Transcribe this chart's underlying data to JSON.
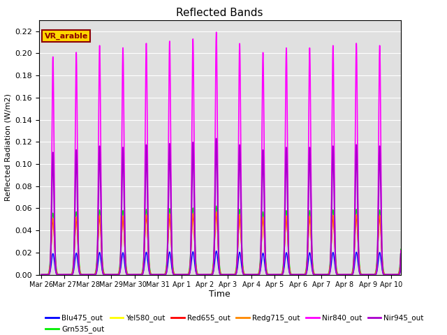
{
  "title": "Reflected Bands",
  "xlabel": "Time",
  "ylabel": "Reflected Radiation (W/m2)",
  "annotation_text": "VR_arable",
  "annotation_color": "#8B0000",
  "annotation_bg": "#FFD700",
  "ylim": [
    0.0,
    0.23
  ],
  "yticks": [
    0.0,
    0.02,
    0.04,
    0.06,
    0.08,
    0.1,
    0.12,
    0.14,
    0.16,
    0.18,
    0.2,
    0.22
  ],
  "bg_color": "#E0E0E0",
  "series_order": [
    "Blu475_out",
    "Grn535_out",
    "Yel580_out",
    "Red655_out",
    "Redg715_out",
    "Nir840_out",
    "Nir945_out"
  ],
  "series": {
    "Blu475_out": {
      "color": "#0000FF",
      "peak": 0.02,
      "sigma": 0.06,
      "lw": 1.0
    },
    "Grn535_out": {
      "color": "#00EE00",
      "peak": 0.058,
      "sigma": 0.07,
      "lw": 1.0
    },
    "Yel580_out": {
      "color": "#FFFF00",
      "peak": 0.053,
      "sigma": 0.065,
      "lw": 1.0
    },
    "Red655_out": {
      "color": "#FF0000",
      "peak": 0.051,
      "sigma": 0.065,
      "lw": 1.0
    },
    "Redg715_out": {
      "color": "#FF8800",
      "peak": 0.053,
      "sigma": 0.065,
      "lw": 1.0
    },
    "Nir840_out": {
      "color": "#FF00FF",
      "peak": 0.205,
      "sigma": 0.045,
      "lw": 1.2
    },
    "Nir945_out": {
      "color": "#AA00CC",
      "peak": 0.115,
      "sigma": 0.05,
      "lw": 1.5
    }
  },
  "xtick_labels": [
    "Mar 26",
    "Mar 27",
    "Mar 28",
    "Mar 29",
    "Mar 30",
    "Mar 31",
    "Apr 1",
    "Apr 2",
    "Apr 3",
    "Apr 4",
    "Apr 5",
    "Apr 6",
    "Apr 7",
    "Apr 8",
    "Apr 9",
    "Apr 10"
  ],
  "n_days": 16,
  "points_per_day": 200,
  "peak_variation": [
    0.96,
    0.98,
    1.01,
    1.0,
    1.02,
    1.03,
    1.04,
    1.07,
    1.02,
    0.98,
    1.0,
    1.0,
    1.01,
    1.02,
    1.01,
    1.0
  ]
}
